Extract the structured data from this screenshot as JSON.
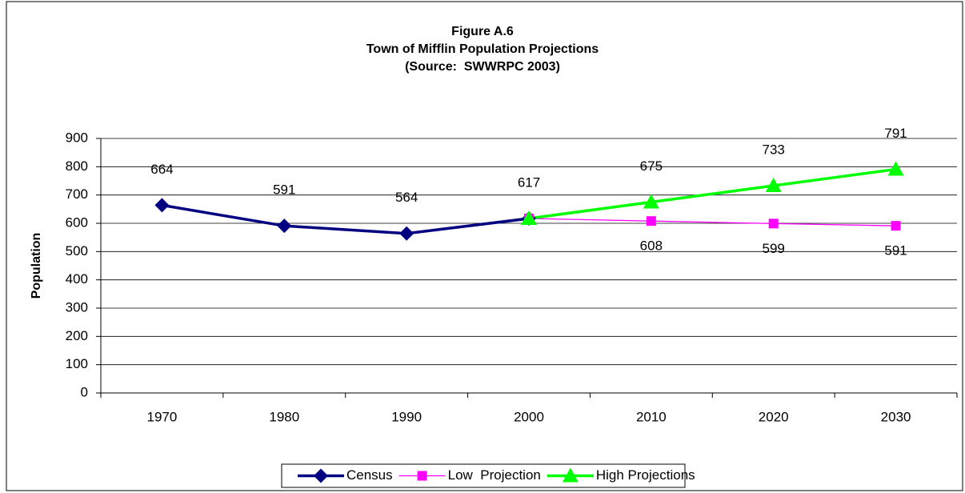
{
  "chart_data": {
    "type": "line",
    "title": "Figure A.6",
    "subtitle": "Town of Mifflin Population Projections",
    "source": "(Source:  SWWRPC 2003)",
    "y_label": "Population",
    "categories": [
      "1970",
      "1980",
      "1990",
      "2000",
      "2010",
      "2020",
      "2030"
    ],
    "series": [
      {
        "name": "Census",
        "color": "#000080",
        "marker": "diamond",
        "values": [
          664,
          591,
          564,
          617,
          null,
          null,
          null
        ]
      },
      {
        "name": "Low  Projection",
        "color": "#ff00ff",
        "marker": "square",
        "values": [
          null,
          null,
          null,
          617,
          608,
          599,
          591
        ]
      },
      {
        "name": "High Projections",
        "color": "#00ff00",
        "marker": "triangle",
        "values": [
          null,
          null,
          null,
          617,
          675,
          733,
          791
        ]
      }
    ],
    "ylim": [
      0,
      900
    ],
    "yticks": [
      0,
      100,
      200,
      300,
      400,
      500,
      600,
      700,
      800,
      900
    ],
    "grid": true,
    "legend": "bottom"
  }
}
